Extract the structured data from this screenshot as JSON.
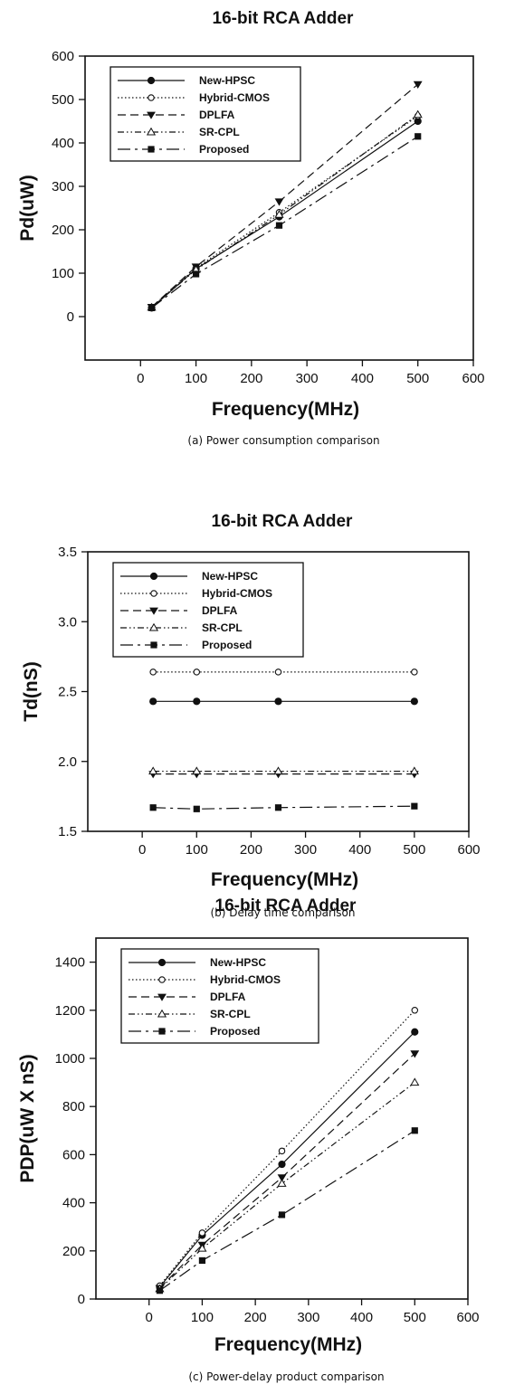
{
  "chart_data": [
    {
      "type": "line",
      "title": "16-bit RCA Adder",
      "caption": "(a) Power consumption comparison",
      "xlabel": "Frequency(MHz)",
      "ylabel": "Pd(uW)",
      "xlim": [
        -100,
        600
      ],
      "ylim": [
        -100,
        600
      ],
      "xticks": [
        "0",
        "100",
        "200",
        "300",
        "400",
        "500",
        "600"
      ],
      "yticks": [
        "0",
        "100",
        "200",
        "300",
        "400",
        "500",
        "600"
      ],
      "legend_position": "top-left",
      "x": [
        20,
        100,
        250,
        500
      ],
      "series": [
        {
          "name": "New-HPSC",
          "values": [
            20,
            110,
            230,
            450
          ]
        },
        {
          "name": "Hybrid-CMOS",
          "values": [
            22,
            112,
            240,
            462
          ]
        },
        {
          "name": "DPLFA",
          "values": [
            22,
            115,
            265,
            535
          ]
        },
        {
          "name": "SR-CPL",
          "values": [
            21,
            108,
            235,
            465
          ]
        },
        {
          "name": "Proposed",
          "values": [
            20,
            98,
            210,
            415
          ]
        }
      ]
    },
    {
      "type": "line",
      "title": "16-bit RCA Adder",
      "caption": "(b) Delay time comparison",
      "xlabel": "Frequency(MHz)",
      "ylabel": "Td(nS)",
      "xlim": [
        -100,
        600
      ],
      "ylim": [
        1.5,
        3.5
      ],
      "xticks": [
        "0",
        "100",
        "200",
        "300",
        "400",
        "500",
        "600"
      ],
      "yticks": [
        "1.5",
        "2.0",
        "2.5",
        "3.0",
        "3.5"
      ],
      "legend_position": "top-left",
      "x": [
        20,
        100,
        250,
        500
      ],
      "series": [
        {
          "name": "New-HPSC",
          "values": [
            2.43,
            2.43,
            2.43,
            2.43
          ]
        },
        {
          "name": "Hybrid-CMOS",
          "values": [
            2.64,
            2.64,
            2.64,
            2.64
          ]
        },
        {
          "name": "DPLFA",
          "values": [
            1.91,
            1.91,
            1.91,
            1.91
          ]
        },
        {
          "name": "SR-CPL",
          "values": [
            1.93,
            1.93,
            1.93,
            1.93
          ]
        },
        {
          "name": "Proposed",
          "values": [
            1.67,
            1.66,
            1.67,
            1.68
          ]
        }
      ]
    },
    {
      "type": "line",
      "title": "16-bit RCA Adder",
      "caption": "(c) Power-delay product comparison",
      "xlabel": "Frequency(MHz)",
      "ylabel": "PDP(uW X nS)",
      "xlim": [
        -100,
        600
      ],
      "ylim": [
        0,
        1500
      ],
      "xticks": [
        "0",
        "100",
        "200",
        "300",
        "400",
        "500",
        "600"
      ],
      "yticks": [
        "0",
        "200",
        "400",
        "600",
        "800",
        "1000",
        "1200",
        "1400"
      ],
      "legend_position": "top-left",
      "x": [
        20,
        100,
        250,
        500
      ],
      "series": [
        {
          "name": "New-HPSC",
          "values": [
            50,
            265,
            560,
            1110
          ]
        },
        {
          "name": "Hybrid-CMOS",
          "values": [
            55,
            275,
            615,
            1200
          ]
        },
        {
          "name": "DPLFA",
          "values": [
            45,
            225,
            505,
            1020
          ]
        },
        {
          "name": "SR-CPL",
          "values": [
            42,
            210,
            480,
            900
          ]
        },
        {
          "name": "Proposed",
          "values": [
            35,
            160,
            350,
            700
          ]
        }
      ]
    }
  ]
}
